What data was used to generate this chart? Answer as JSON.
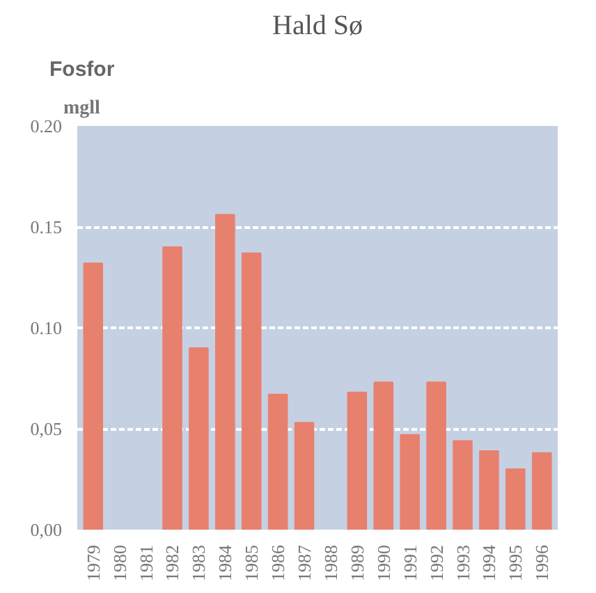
{
  "chart_data": {
    "type": "bar",
    "title": "Hald Sø",
    "subtitle": "Fosfor",
    "ylabel": "mgll",
    "categories": [
      "1979",
      "1980",
      "1981",
      "1982",
      "1983",
      "1984",
      "1985",
      "1986",
      "1987",
      "1988",
      "1989",
      "1990",
      "1991",
      "1992",
      "1993",
      "1994",
      "1995",
      "1996"
    ],
    "values": [
      0.132,
      null,
      null,
      0.14,
      0.09,
      0.156,
      0.137,
      0.067,
      0.053,
      null,
      0.068,
      0.073,
      0.047,
      0.073,
      0.044,
      0.039,
      0.03,
      0.038
    ],
    "color": "#e8806e",
    "ylim": [
      0,
      0.2
    ],
    "yticks": [
      {
        "value": 0,
        "label": "0,00"
      },
      {
        "value": 0.05,
        "label": "0,05"
      },
      {
        "value": 0.1,
        "label": "0.10"
      },
      {
        "value": 0.15,
        "label": "0.15"
      },
      {
        "value": 0.2,
        "label": "0.20"
      }
    ],
    "grid": "y"
  }
}
